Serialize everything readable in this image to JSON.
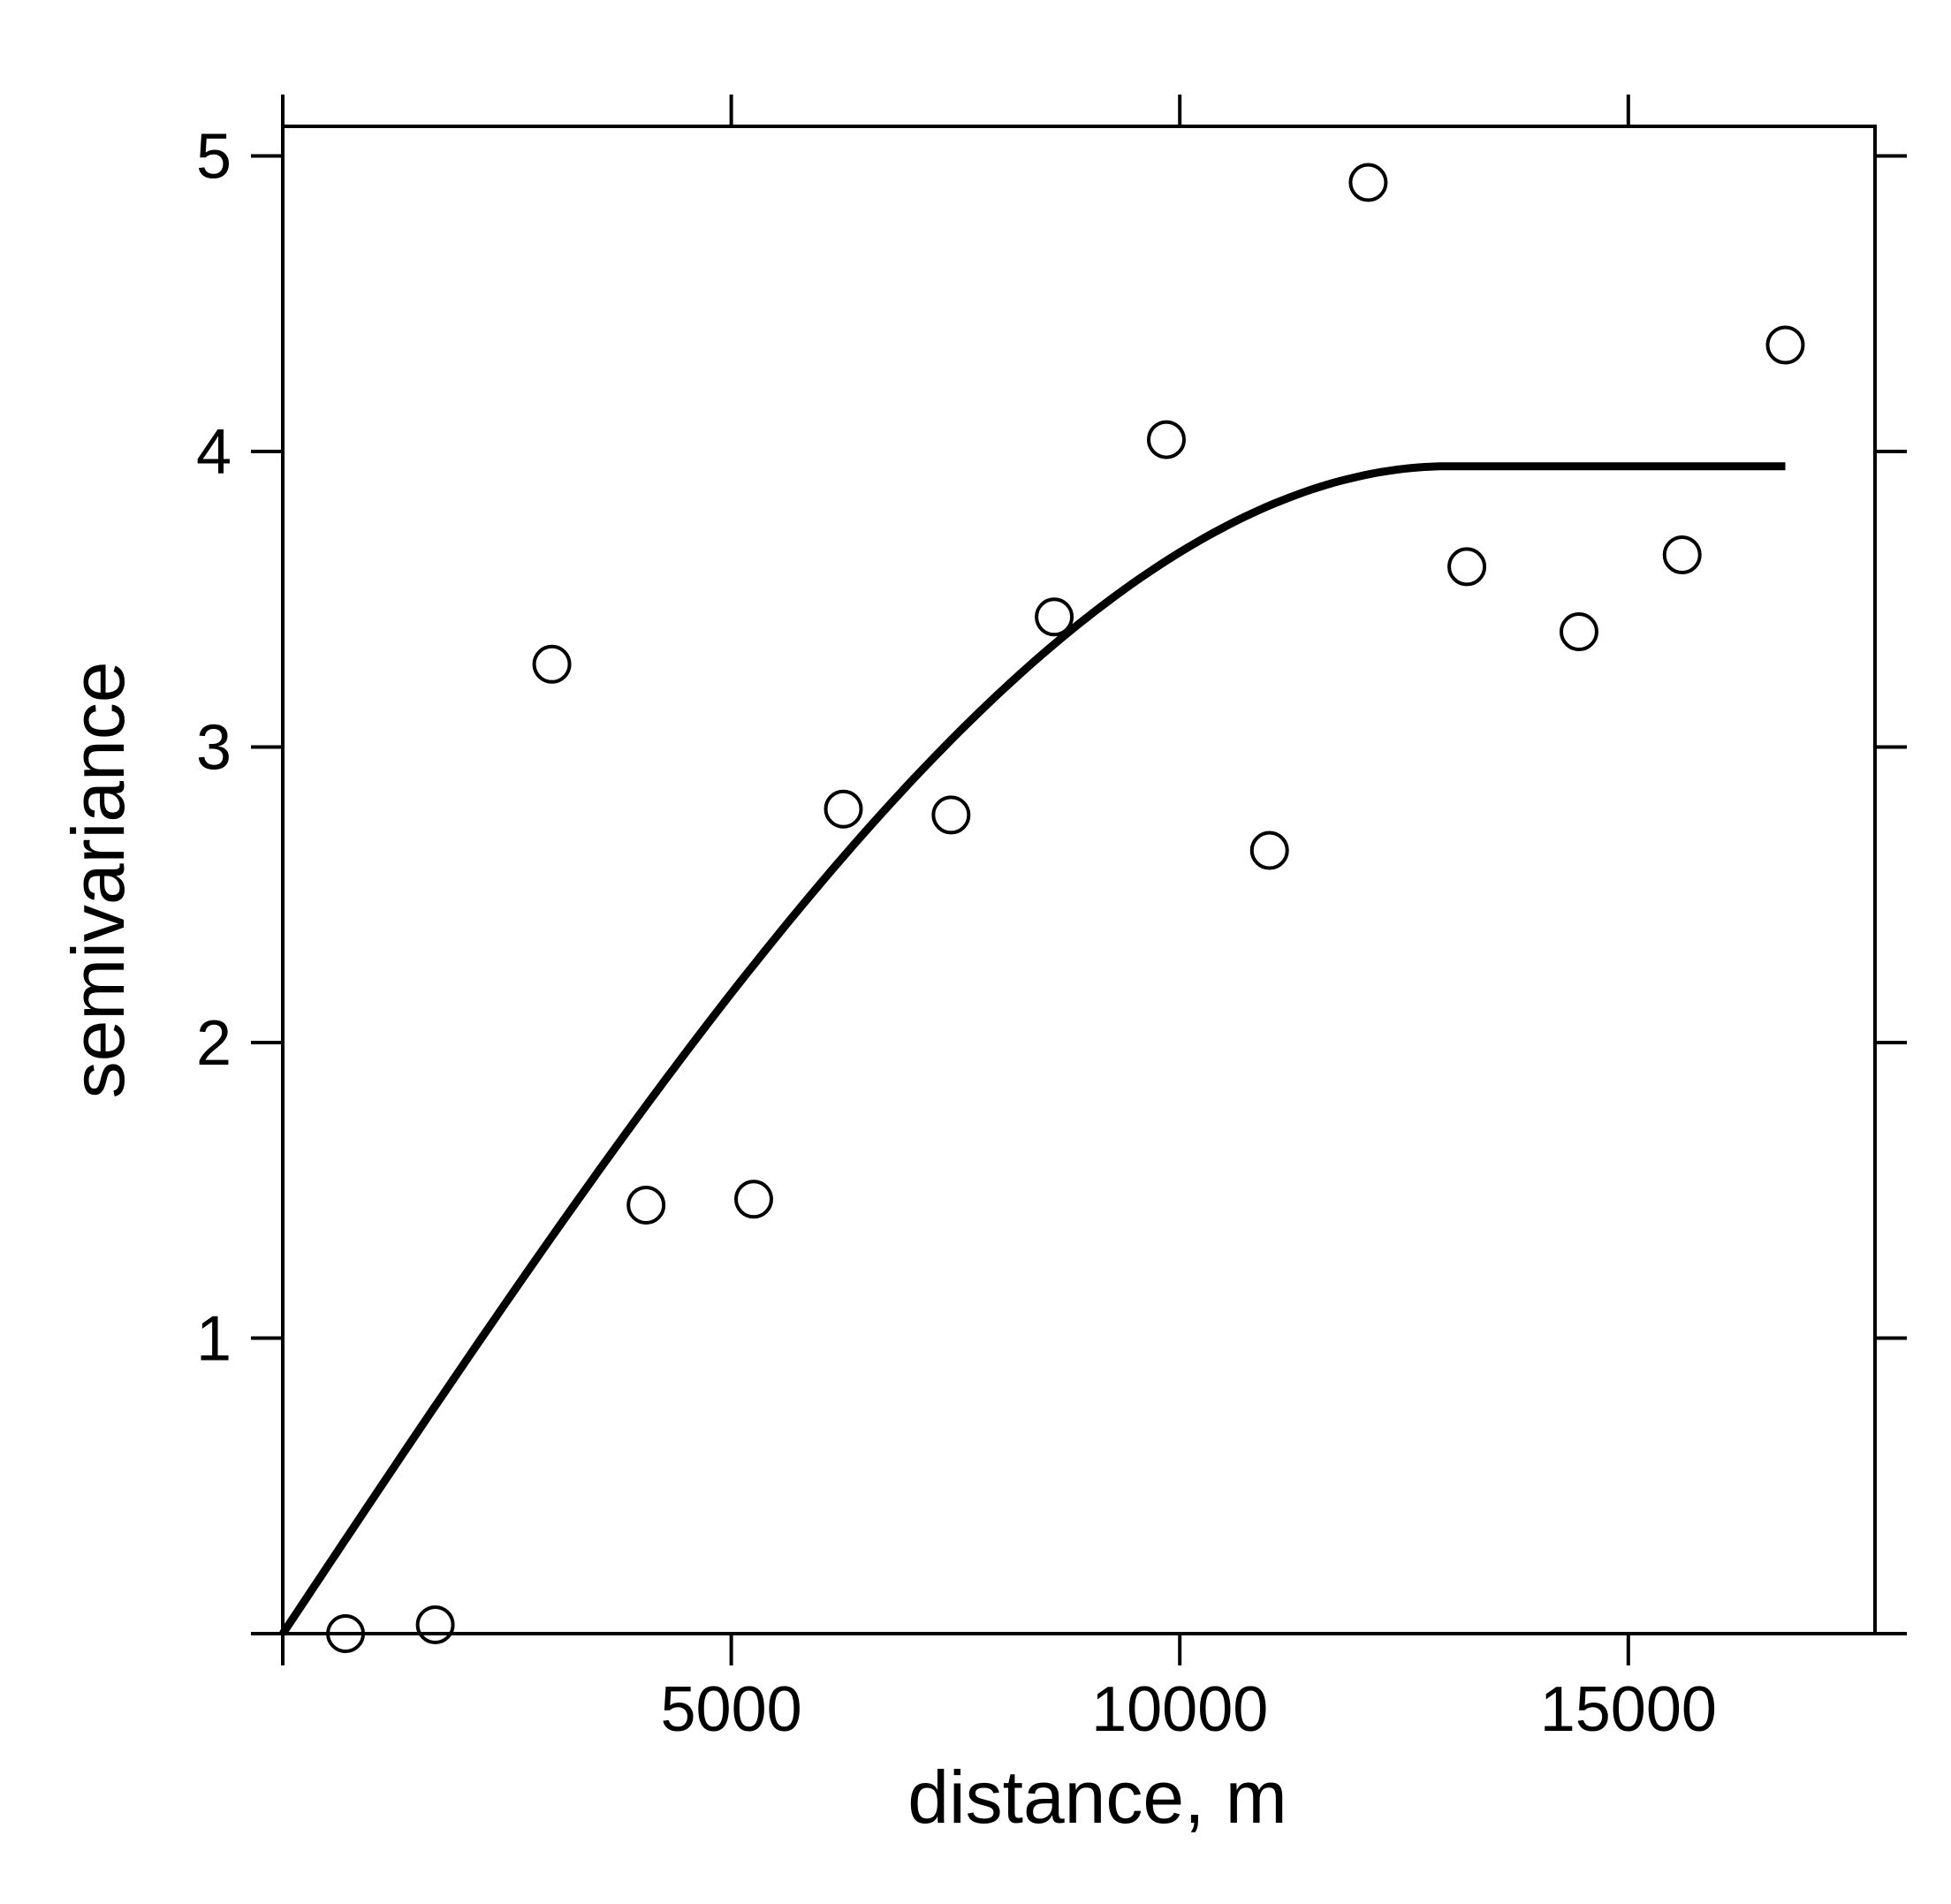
{
  "chart_data": {
    "type": "scatter",
    "title": "",
    "xlabel": "distance, m",
    "ylabel": "semivariance",
    "xlim": [
      0,
      17750
    ],
    "ylim": [
      0,
      5.1
    ],
    "x_ticks": [
      5000,
      10000,
      15000
    ],
    "x_tick_labels": [
      "5000",
      "10000",
      "15000"
    ],
    "y_ticks": [
      1,
      2,
      3,
      4,
      5
    ],
    "y_tick_labels": [
      "1",
      "2",
      "3",
      "4",
      "5"
    ],
    "grid": false,
    "series": [
      {
        "kind": "points",
        "marker": "open-circle",
        "points": [
          {
            "x": 700,
            "y": 0.0
          },
          {
            "x": 1700,
            "y": 0.03
          },
          {
            "x": 3000,
            "y": 3.28
          },
          {
            "x": 4050,
            "y": 1.45
          },
          {
            "x": 5250,
            "y": 1.47
          },
          {
            "x": 6250,
            "y": 2.79
          },
          {
            "x": 7450,
            "y": 2.77
          },
          {
            "x": 8600,
            "y": 3.44
          },
          {
            "x": 9850,
            "y": 4.04
          },
          {
            "x": 11000,
            "y": 2.65
          },
          {
            "x": 12100,
            "y": 4.91
          },
          {
            "x": 13200,
            "y": 3.61
          },
          {
            "x": 14450,
            "y": 3.39
          },
          {
            "x": 15600,
            "y": 3.65
          },
          {
            "x": 16750,
            "y": 4.36
          }
        ]
      },
      {
        "kind": "model-curve",
        "model": "spherical",
        "nugget": 0,
        "sill": 3.95,
        "range": 13000,
        "x_max": 16750
      }
    ]
  }
}
